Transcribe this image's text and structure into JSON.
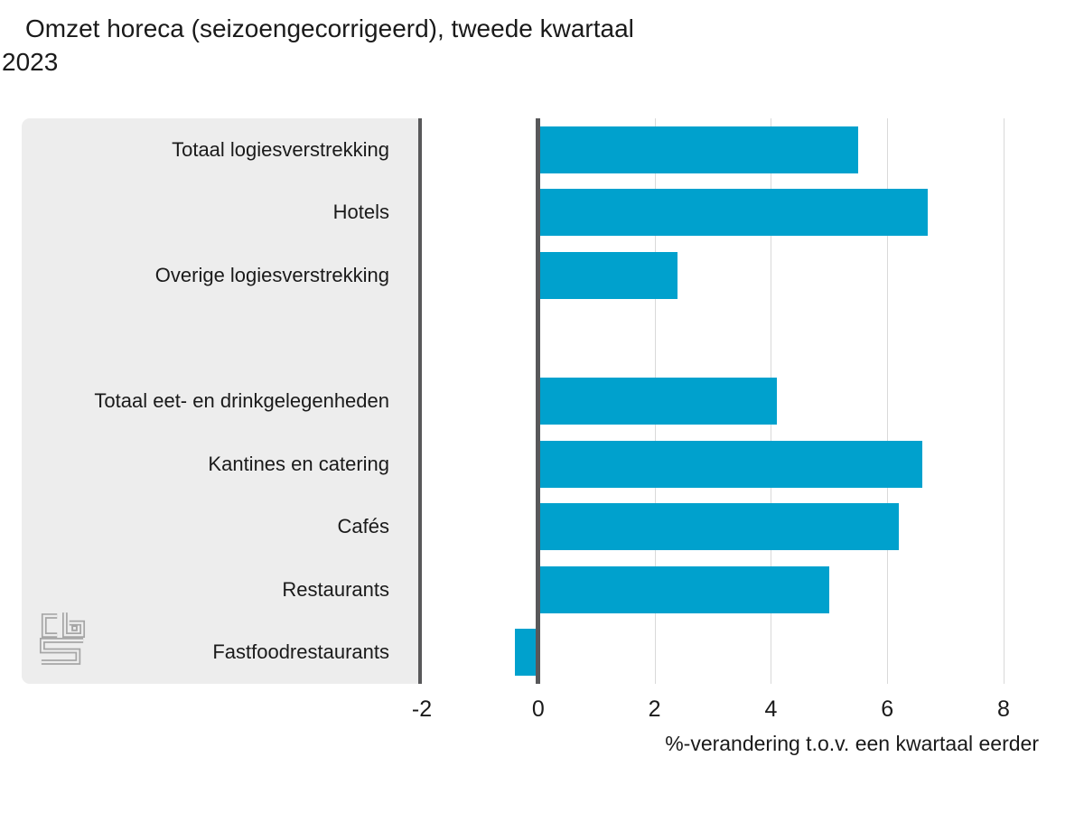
{
  "title": {
    "line1": "Omzet horeca (seizoengecorrigeerd), tweede kwartaal",
    "line2": "2023",
    "full": "Omzet horeca (seizoengecorrigeerd), tweede kwartaal 2023"
  },
  "chart_data": {
    "type": "bar",
    "orientation": "horizontal",
    "title": "Omzet horeca (seizoengecorrigeerd), tweede kwartaal 2023",
    "xlabel": "%-verandering t.o.v. een kwartaal eerder",
    "categories": [
      "Totaal logiesverstrekking",
      "Hotels",
      "Overige logiesverstrekking",
      "Totaal eet- en drinkgelegenheden",
      "Kantines en catering",
      "Cafés",
      "Restaurants",
      "Fastfoodrestaurants"
    ],
    "values": [
      5.5,
      6.7,
      2.4,
      4.1,
      6.6,
      6.2,
      5.0,
      -0.4
    ],
    "rows": [
      {
        "label": "Totaal logiesverstrekking",
        "value": 5.5
      },
      {
        "label": "Hotels",
        "value": 6.7
      },
      {
        "label": "Overige logiesverstrekking",
        "value": 2.4
      },
      {
        "label": "",
        "value": null
      },
      {
        "label": "Totaal eet- en drinkgelegenheden",
        "value": 4.1
      },
      {
        "label": "Kantines en catering",
        "value": 6.6
      },
      {
        "label": "Cafés",
        "value": 6.2
      },
      {
        "label": "Restaurants",
        "value": 5.0
      },
      {
        "label": "Fastfoodrestaurants",
        "value": -0.4
      }
    ],
    "x_ticks": [
      -2,
      0,
      2,
      4,
      6,
      8
    ],
    "gridline_values": [
      2,
      4,
      6,
      8
    ],
    "xlim": [
      -2,
      8.9
    ],
    "grid": "vertical-light",
    "legend": "none"
  },
  "logo": {
    "icon": "cbs-logo",
    "alt": "CBS"
  },
  "colors": {
    "bar": "#00a1cd",
    "panel-bg": "#ededed",
    "axis-dark": "#58585a",
    "gridline": "#d9d9d9",
    "text": "#1a1a1a",
    "logo": "#a6a6a6",
    "page-bg": "#ffffff"
  }
}
